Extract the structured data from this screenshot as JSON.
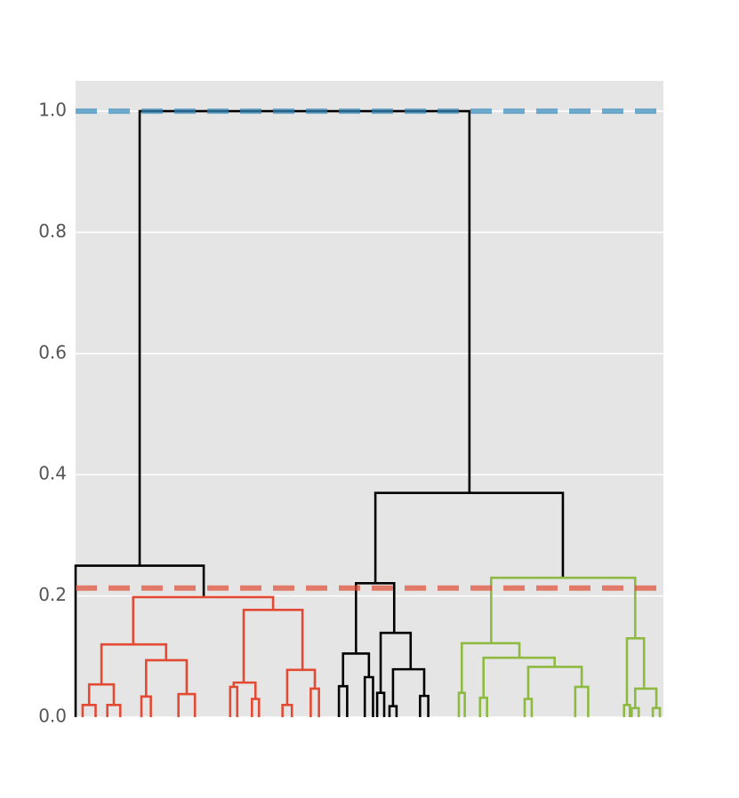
{
  "chart_data": {
    "type": "dendrogram",
    "xlim": [
      0,
      100
    ],
    "ylim": [
      0,
      1.05
    ],
    "yticks": [
      {
        "value": 0,
        "label": "0.0"
      },
      0.2,
      0.4,
      0.6,
      0.8,
      {
        "value": 1,
        "label": "1.0"
      }
    ],
    "grid": true,
    "hlines": [
      {
        "value": 1.0,
        "color": "#348abd"
      },
      {
        "value": 0.213,
        "color": "#e24a33"
      }
    ],
    "clusters": [
      {
        "color": "#000000",
        "links": [
          [
            10.9,
            67.0,
            0.25,
            1.0,
            0.37
          ],
          [
            0,
            21.8,
            0,
            0.25,
            0.198
          ],
          [
            51.0,
            82.9,
            0.221,
            0.37,
            0.23
          ]
        ]
      },
      {
        "color": "#e24a33",
        "links": [
          [
            9.8,
            33.6,
            0.12,
            0.198,
            0.177
          ],
          [
            4.4,
            15.4,
            0.054,
            0.12,
            0.094
          ],
          [
            2.3,
            6.5,
            0.02,
            0.054,
            0.02
          ],
          [
            12.0,
            18.9,
            0.034,
            0.094,
            0.038
          ],
          [
            28.6,
            38.6,
            0.057,
            0.177,
            0.078
          ],
          [
            26.9,
            30.6,
            0.05,
            0.057,
            0.03
          ],
          [
            36.0,
            40.7,
            0.02,
            0.078,
            0.047
          ],
          [
            1.2,
            3.4,
            0,
            0.02,
            0
          ],
          [
            5.4,
            7.6,
            0,
            0.02,
            0
          ],
          [
            11.2,
            12.8,
            0,
            0.034,
            0
          ],
          [
            17.5,
            20.3,
            0,
            0.038,
            0
          ],
          [
            26.3,
            27.5,
            0,
            0.05,
            0
          ],
          [
            30.0,
            31.2,
            0,
            0.03,
            0
          ],
          [
            35.2,
            36.8,
            0,
            0.02,
            0
          ],
          [
            40.0,
            41.4,
            0,
            0.047,
            0
          ]
        ]
      },
      {
        "color": "#000000",
        "links": [
          [
            47.7,
            54.2,
            0.105,
            0.221,
            0.139
          ],
          [
            45.5,
            49.9,
            0.051,
            0.105,
            0.066
          ],
          [
            51.9,
            57.0,
            0.04,
            0.139,
            0.079
          ],
          [
            54.0,
            59.3,
            0.018,
            0.079,
            0.035
          ],
          [
            44.8,
            46.2,
            0,
            0.051,
            0
          ],
          [
            49.2,
            50.6,
            0,
            0.066,
            0
          ],
          [
            51.3,
            52.5,
            0,
            0.04,
            0
          ],
          [
            53.4,
            54.6,
            0,
            0.018,
            0
          ],
          [
            58.6,
            60.0,
            0,
            0.035,
            0
          ]
        ]
      },
      {
        "color": "#8eba42",
        "links": [
          [
            70.7,
            95.2,
            0.122,
            0.23,
            0.13
          ],
          [
            65.7,
            75.5,
            0.04,
            0.122,
            0.098
          ],
          [
            69.4,
            81.5,
            0.032,
            0.098,
            0.083
          ],
          [
            77.0,
            86.1,
            0.03,
            0.083,
            0.05
          ],
          [
            93.8,
            96.7,
            0.02,
            0.13,
            0.047
          ],
          [
            95.2,
            98.8,
            0.015,
            0.047,
            0.015
          ],
          [
            65.2,
            66.2,
            0,
            0.04,
            0
          ],
          [
            68.8,
            70.0,
            0,
            0.032,
            0
          ],
          [
            76.4,
            77.6,
            0,
            0.03,
            0
          ],
          [
            85.0,
            87.2,
            0,
            0.05,
            0
          ],
          [
            93.3,
            94.3,
            0,
            0.02,
            0
          ],
          [
            94.6,
            95.8,
            0,
            0.015,
            0
          ],
          [
            98.2,
            99.4,
            0,
            0.015,
            0
          ]
        ]
      }
    ]
  }
}
